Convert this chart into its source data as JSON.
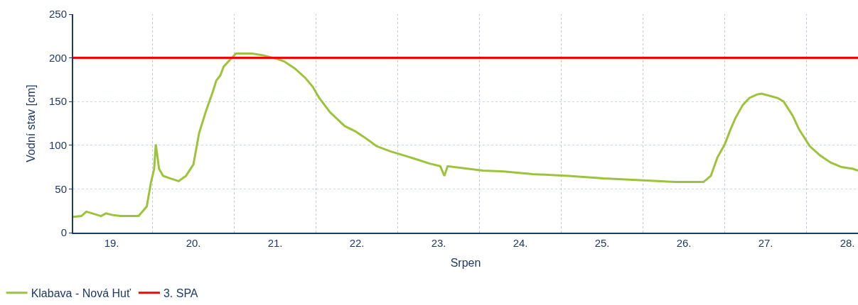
{
  "chart_data": {
    "type": "line",
    "xlabel": "Srpen",
    "ylabel": "Vodní stav [cm]",
    "xlim": [
      19.03,
      28.63
    ],
    "ylim": [
      0,
      250
    ],
    "xticks": [
      {
        "value": 19.5,
        "label": "19."
      },
      {
        "value": 20,
        "label": null
      },
      {
        "value": 20.5,
        "label": "20."
      },
      {
        "value": 21,
        "label": null
      },
      {
        "value": 21.5,
        "label": "21."
      },
      {
        "value": 22,
        "label": null
      },
      {
        "value": 22.5,
        "label": "22."
      },
      {
        "value": 23,
        "label": null
      },
      {
        "value": 23.5,
        "label": "23."
      },
      {
        "value": 24,
        "label": null
      },
      {
        "value": 24.5,
        "label": "24."
      },
      {
        "value": 25,
        "label": null
      },
      {
        "value": 25.5,
        "label": "25."
      },
      {
        "value": 26,
        "label": null
      },
      {
        "value": 26.5,
        "label": "26."
      },
      {
        "value": 27,
        "label": null
      },
      {
        "value": 27.5,
        "label": "27."
      },
      {
        "value": 28,
        "label": null
      },
      {
        "value": 28.5,
        "label": "28."
      }
    ],
    "yticks": [
      0,
      50,
      100,
      150,
      200,
      250
    ],
    "grid": true,
    "legend": "bottom left",
    "series": [
      {
        "name": "Klabava - Nová Huť",
        "color": "#9dc33b",
        "x": [
          19.03,
          19.13,
          19.19,
          19.3,
          19.37,
          19.43,
          19.52,
          19.61,
          19.83,
          19.93,
          19.98,
          20.02,
          20.04,
          20.08,
          20.13,
          20.22,
          20.32,
          20.41,
          20.5,
          20.57,
          20.65,
          20.74,
          20.78,
          20.83,
          20.87,
          20.93,
          21.02,
          21.22,
          21.35,
          21.52,
          21.61,
          21.74,
          21.87,
          21.96,
          22.04,
          22.17,
          22.35,
          22.48,
          22.61,
          22.74,
          22.91,
          23.09,
          23.26,
          23.39,
          23.52,
          23.57,
          23.61,
          23.78,
          24.04,
          24.3,
          24.65,
          25.09,
          25.52,
          25.96,
          26.39,
          26.65,
          26.74,
          26.83,
          26.91,
          27.0,
          27.07,
          27.13,
          27.22,
          27.3,
          27.39,
          27.45,
          27.57,
          27.65,
          27.72,
          27.83,
          27.91,
          28.04,
          28.17,
          28.3,
          28.43,
          28.57,
          28.63
        ],
        "values": [
          18,
          19,
          24,
          21,
          19,
          22,
          20,
          19,
          19,
          30,
          57,
          73,
          101,
          73,
          65,
          62,
          59,
          65,
          78,
          114,
          138,
          162,
          174,
          180,
          190,
          196,
          205,
          205,
          203,
          199,
          196,
          188,
          177,
          167,
          154,
          138,
          122,
          116,
          108,
          99,
          93,
          88,
          83,
          79,
          76,
          65,
          76,
          74,
          71,
          70,
          67,
          65,
          62,
          60,
          58,
          58,
          58,
          65,
          86,
          101,
          118,
          131,
          146,
          154,
          158,
          159,
          156,
          154,
          150,
          134,
          118,
          99,
          88,
          80,
          75,
          73,
          71
        ]
      }
    ],
    "ref_lines": [
      {
        "axis": "y",
        "value": 200,
        "label": "3. SPA",
        "color": "#ff0000",
        "line_style": "solid"
      }
    ]
  }
}
